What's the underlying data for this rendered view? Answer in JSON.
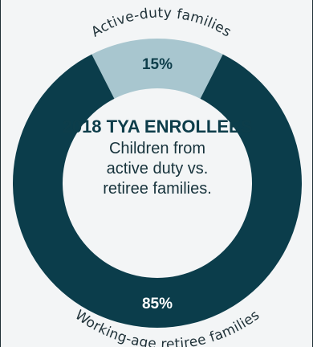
{
  "chart_data": {
    "type": "pie",
    "title": "2018 TYA ENROLLEES",
    "subtitle_lines": [
      "Children from",
      "active duty vs.",
      "retiree families."
    ],
    "slices": [
      {
        "label": "Active-duty families",
        "value": 15,
        "value_label": "15%",
        "color": "#a8c6cf",
        "text_color": "#0d3d4a"
      },
      {
        "label": "Working-age retiree families",
        "value": 85,
        "value_label": "85%",
        "color": "#0b3d4b",
        "text_color": "#ffffff"
      }
    ]
  }
}
